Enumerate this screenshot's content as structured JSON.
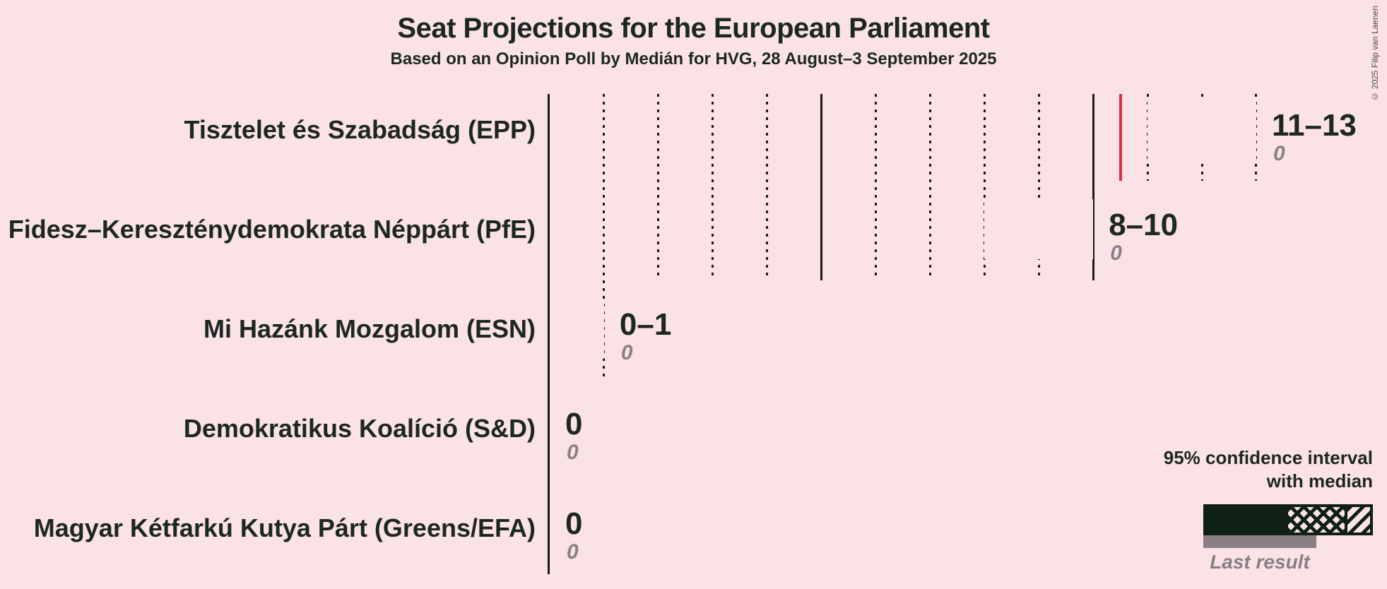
{
  "colors": {
    "background": "#fae2e7",
    "text": "#1d2721",
    "gridline": "#1a1a1a",
    "gray": "#8a8084",
    "legend_dark": "#0f2015",
    "majority_line": "#d92e49"
  },
  "copyright": "© 2025 Filip van Laenen",
  "legend": {
    "ci_line1": "95% confidence interval",
    "ci_line2": "with median",
    "last_result_label": "Last result"
  },
  "chart_data": {
    "type": "bar",
    "orientation": "horizontal",
    "title": "Seat Projections for the European Parliament",
    "subtitle": "Based on an Opinion Poll by Medián for HVG, 28 August–3 September 2025",
    "xlabel": "",
    "ylabel": "",
    "x_axis": {
      "min": 0,
      "max": 13,
      "unit": "seats",
      "minor_gridline_step": 1,
      "major_gridline_step": 5,
      "tick_labels_shown": false
    },
    "majority_line_value": 10.5,
    "bars": [
      {
        "party": "Tisztelet és Szabadság (EPP)",
        "low": 11,
        "median": 12,
        "high": 13,
        "range_label": "11–13",
        "last_result": 0,
        "last_result_label": "0",
        "color": "#3399ff"
      },
      {
        "party": "Fidesz–Kereszténydemokrata Néppárt (PfE)",
        "low": 8,
        "median": 9,
        "high": 10,
        "range_label": "8–10",
        "last_result": 0,
        "last_result_label": "0",
        "color": "#131313"
      },
      {
        "party": "Mi Hazánk Mozgalom (ESN)",
        "low": 0,
        "median": 0,
        "high": 1,
        "range_label": "0–1",
        "last_result": 0,
        "last_result_label": "0",
        "color": "#7b5044"
      },
      {
        "party": "Demokratikus Koalíció (S&D)",
        "low": 0,
        "median": 0,
        "high": 0,
        "range_label": "0",
        "last_result": 0,
        "last_result_label": "0",
        "color": null
      },
      {
        "party": "Magyar Kétfarkú Kutya Párt (Greens/EFA)",
        "low": 0,
        "median": 0,
        "high": 0,
        "range_label": "0",
        "last_result": 0,
        "last_result_label": "0",
        "color": null
      }
    ]
  }
}
